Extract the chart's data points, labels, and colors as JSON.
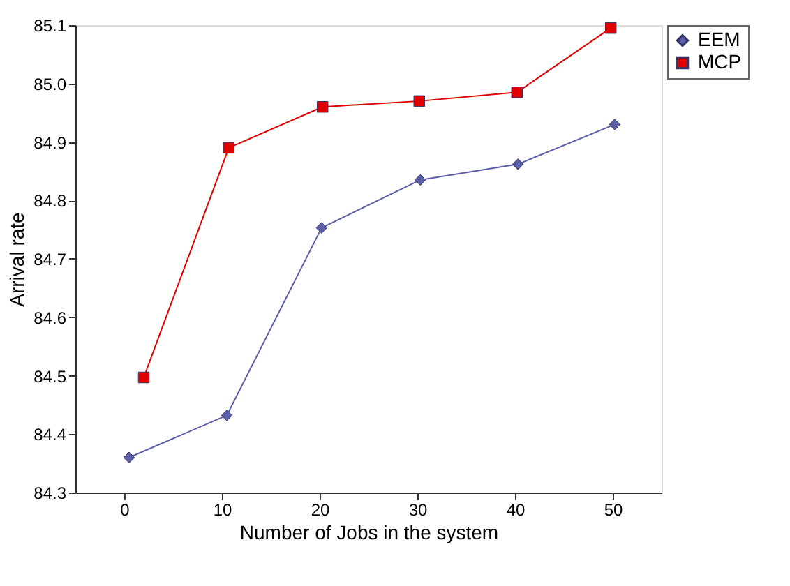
{
  "chart_data": {
    "type": "line",
    "xlabel": "Number of Jobs in the system",
    "ylabel": "Arrival rate",
    "xlim": [
      -5,
      55
    ],
    "xticks": [
      0,
      10,
      20,
      30,
      40,
      50
    ],
    "ylim": [
      84.3,
      85.1
    ],
    "yticks": [
      84.3,
      84.4,
      84.5,
      84.6,
      84.7,
      84.8,
      84.9,
      {
        "value": 85.0,
        "label": "85.0"
      },
      85.1
    ],
    "grid": false,
    "legend": "right",
    "series": [
      {
        "name": "EEM",
        "color": "#5a5fa8",
        "marker": "diamond",
        "x": [
          0.5,
          10.5,
          20.2,
          30.3,
          40.3,
          50.2
        ],
        "values": [
          84.36,
          84.432,
          84.753,
          84.835,
          84.862,
          84.93
        ]
      },
      {
        "name": "MCP",
        "color": "#e00000",
        "marker": "square",
        "x": [
          2,
          10.7,
          20.3,
          30.2,
          40.2,
          49.8
        ],
        "values": [
          84.497,
          84.89,
          84.96,
          84.97,
          84.985,
          85.095
        ]
      }
    ]
  }
}
